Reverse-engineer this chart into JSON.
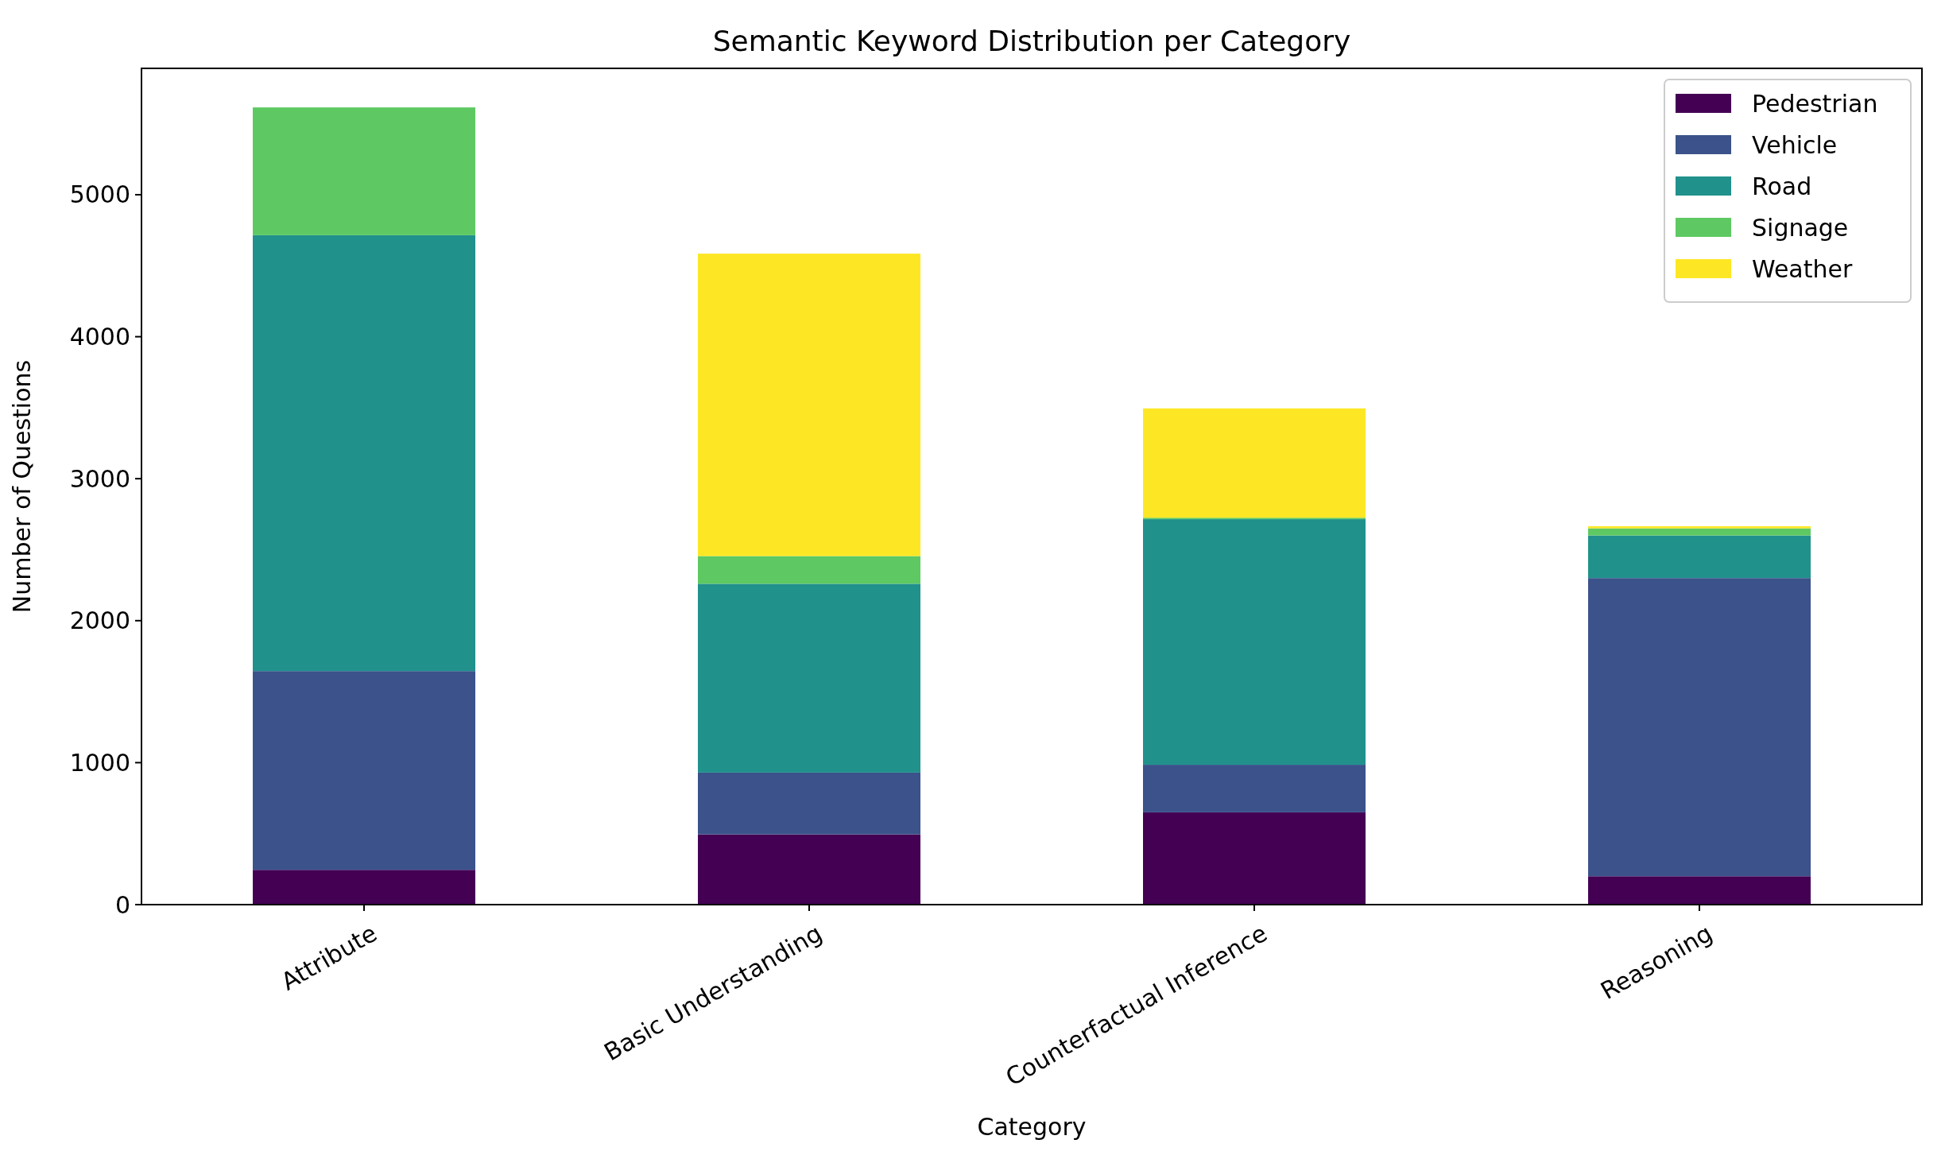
{
  "chart_data": {
    "type": "bar",
    "stacked": true,
    "title": "Semantic Keyword Distribution per Category",
    "xlabel": "Category",
    "ylabel": "Number of Questions",
    "categories": [
      "Attribute",
      "Basic Understanding",
      "Counterfactual Inference",
      "Reasoning"
    ],
    "series": [
      {
        "name": "Pedestrian",
        "color": "#440154",
        "values": [
          245,
          495,
          650,
          200
        ]
      },
      {
        "name": "Vehicle",
        "color": "#3b528b",
        "values": [
          1400,
          435,
          335,
          2100
        ]
      },
      {
        "name": "Road",
        "color": "#21918c",
        "values": [
          3070,
          1330,
          1730,
          300
        ]
      },
      {
        "name": "Signage",
        "color": "#5ec962",
        "values": [
          900,
          195,
          10,
          50
        ]
      },
      {
        "name": "Weather",
        "color": "#fde725",
        "values": [
          0,
          2130,
          770,
          15
        ]
      }
    ],
    "ylim": [
      0,
      5890
    ],
    "yticks": [
      0,
      1000,
      2000,
      3000,
      4000,
      5000
    ],
    "legend": "top right"
  }
}
